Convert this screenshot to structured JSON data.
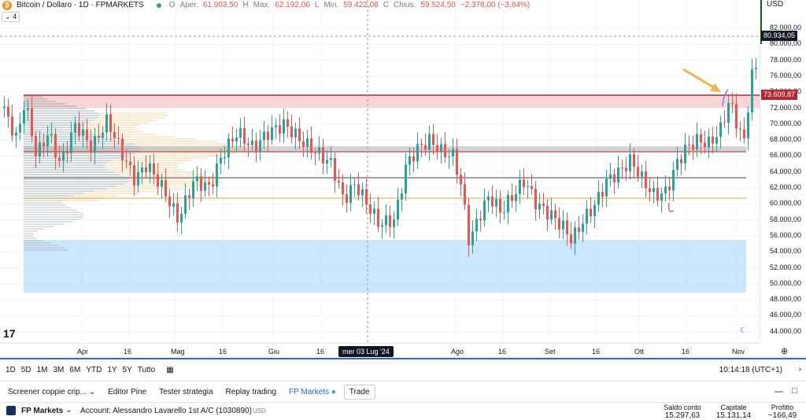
{
  "header": {
    "symbol_title": "Bitcoin / Dollaro · 1D · FPMARKETS",
    "open_label": "O",
    "open_text": "Aper.",
    "open_value": "61.903,50",
    "high_label": "H",
    "high_text": "Max.",
    "high_value": "62.192,06",
    "low_label": "L",
    "low_text": "Min.",
    "low_value": "59.422,08",
    "close_label": "C",
    "close_text": "Chius.",
    "close_value": "59.524,50",
    "change_value": "−2.378,00 (−3,84%)",
    "indicator_count": "4"
  },
  "price_axis": {
    "currency": "USD",
    "ticks": [
      "82.000,00",
      "80.000,00",
      "78.000,00",
      "76.000,00",
      "74.000,00",
      "72.000,00",
      "70.000,00",
      "68.000,00",
      "66.000,00",
      "64.000,00",
      "62.000,00",
      "60.000,00",
      "58.000,00",
      "56.000,00",
      "54.000,00",
      "52.000,00",
      "50.000,00",
      "48.000,00",
      "46.000,00",
      "44.000,00"
    ],
    "crosshair_price": "80.934,05",
    "resistance_price": "73.609,87"
  },
  "time_axis": {
    "ticks": [
      "Apr",
      "16",
      "Mag",
      "16",
      "Giu",
      "16",
      "Ago",
      "16",
      "Set",
      "16",
      "Ott",
      "16",
      "Nov"
    ],
    "cursor_date": "mer 03 Lug '24"
  },
  "range_bar": {
    "buttons": [
      "1D",
      "5D",
      "1M",
      "3M",
      "6M",
      "YTD",
      "1Y",
      "5Y",
      "Tutto"
    ],
    "clock": "10:14:18 (UTC+1)"
  },
  "panel_tabs": {
    "items": [
      "Screener coppie crip...",
      "Editor Pine",
      "Tester strategia",
      "Replay trading",
      "FP Markets",
      "Trade"
    ]
  },
  "account": {
    "broker": "FP Markets",
    "account_label": "Account: Alessandro Lavarello 1st A/C (1030890)",
    "account_currency": "USD",
    "balance_title": "Saldo conto",
    "balance_value": "15.297,63",
    "equity_title": "Capitale",
    "equity_value": "15.131,14",
    "profit_title": "Profitto",
    "profit_value": "−166,49"
  },
  "colors": {
    "up": "#26a69a",
    "down": "#ef5350",
    "accent": "#2962ff",
    "resistance": "#b22833",
    "support_line": "#f0a030",
    "demand_zone": "#bbdefb",
    "supply_zone": "#f8c7c9"
  }
}
